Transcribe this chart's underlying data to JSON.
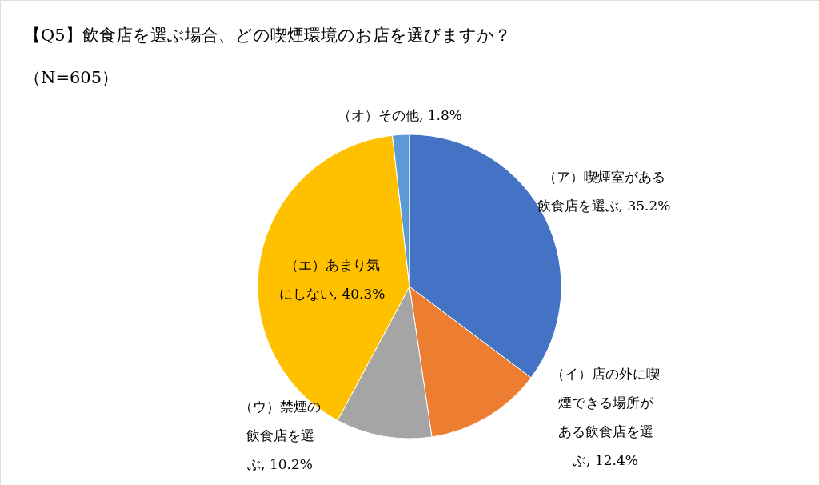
{
  "chart_data": {
    "type": "pie",
    "title": "【Q5】飲食店を選ぶ場合、どの喫煙環境のお店を選びますか？",
    "subtitle": "（N=605）",
    "categories": [
      "（ア）喫煙室がある飲食店を選ぶ",
      "（イ）店の外に喫煙できる場所がある飲食店を選ぶ",
      "（ウ）禁煙の飲食店を選ぶ",
      "（エ）あまり気にしない",
      "（オ）その他"
    ],
    "values": [
      35.2,
      12.4,
      10.2,
      40.3,
      1.8
    ],
    "colors": [
      "#4472c4",
      "#ed7d31",
      "#a5a5a5",
      "#ffc000",
      "#5b9bd5"
    ],
    "value_labels": [
      ", 35.2%",
      ", 12.4%",
      ", 10.2%",
      ", 40.3%",
      ", 1.8%"
    ]
  }
}
